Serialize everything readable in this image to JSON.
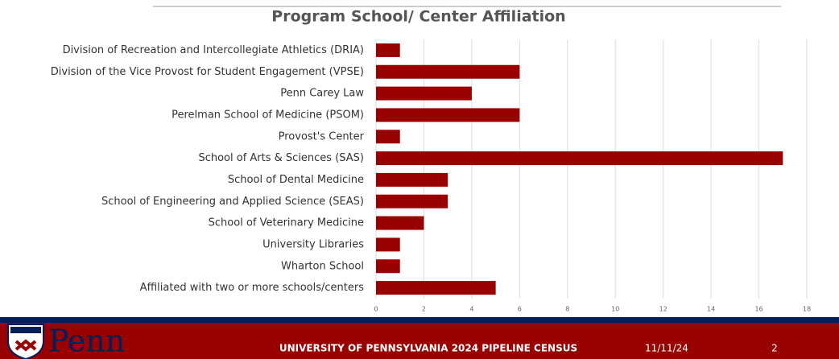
{
  "chart_data": {
    "type": "bar",
    "orientation": "horizontal",
    "title": "Program School/ Center Affiliation",
    "categories": [
      "Division of Recreation and Intercollegiate Athletics (DRIA)",
      "Division of the Vice Provost for Student Engagement (VPSE)",
      "Penn Carey Law",
      "Perelman School of Medicine (PSOM)",
      "Provost's Center",
      "School of Arts & Sciences (SAS)",
      "School of Dental Medicine",
      "School of Engineering and Applied Science (SEAS)",
      "School of Veterinary Medicine",
      "University Libraries",
      "Wharton School",
      "Affiliated with two or more  schools/centers"
    ],
    "values": [
      1,
      6,
      4,
      6,
      1,
      17,
      3,
      3,
      2,
      1,
      1,
      5
    ],
    "color": "#990000",
    "xlim": [
      0,
      18
    ],
    "xticks": [
      0,
      2,
      4,
      6,
      8,
      10,
      12,
      14,
      16,
      18
    ],
    "grid": true
  },
  "footer": {
    "logo": "Penn",
    "title": "UNIVERSITY OF PENNSYLVANIA 2024 PIPELINE CENSUS",
    "date": "11/11/24",
    "page": "2"
  }
}
